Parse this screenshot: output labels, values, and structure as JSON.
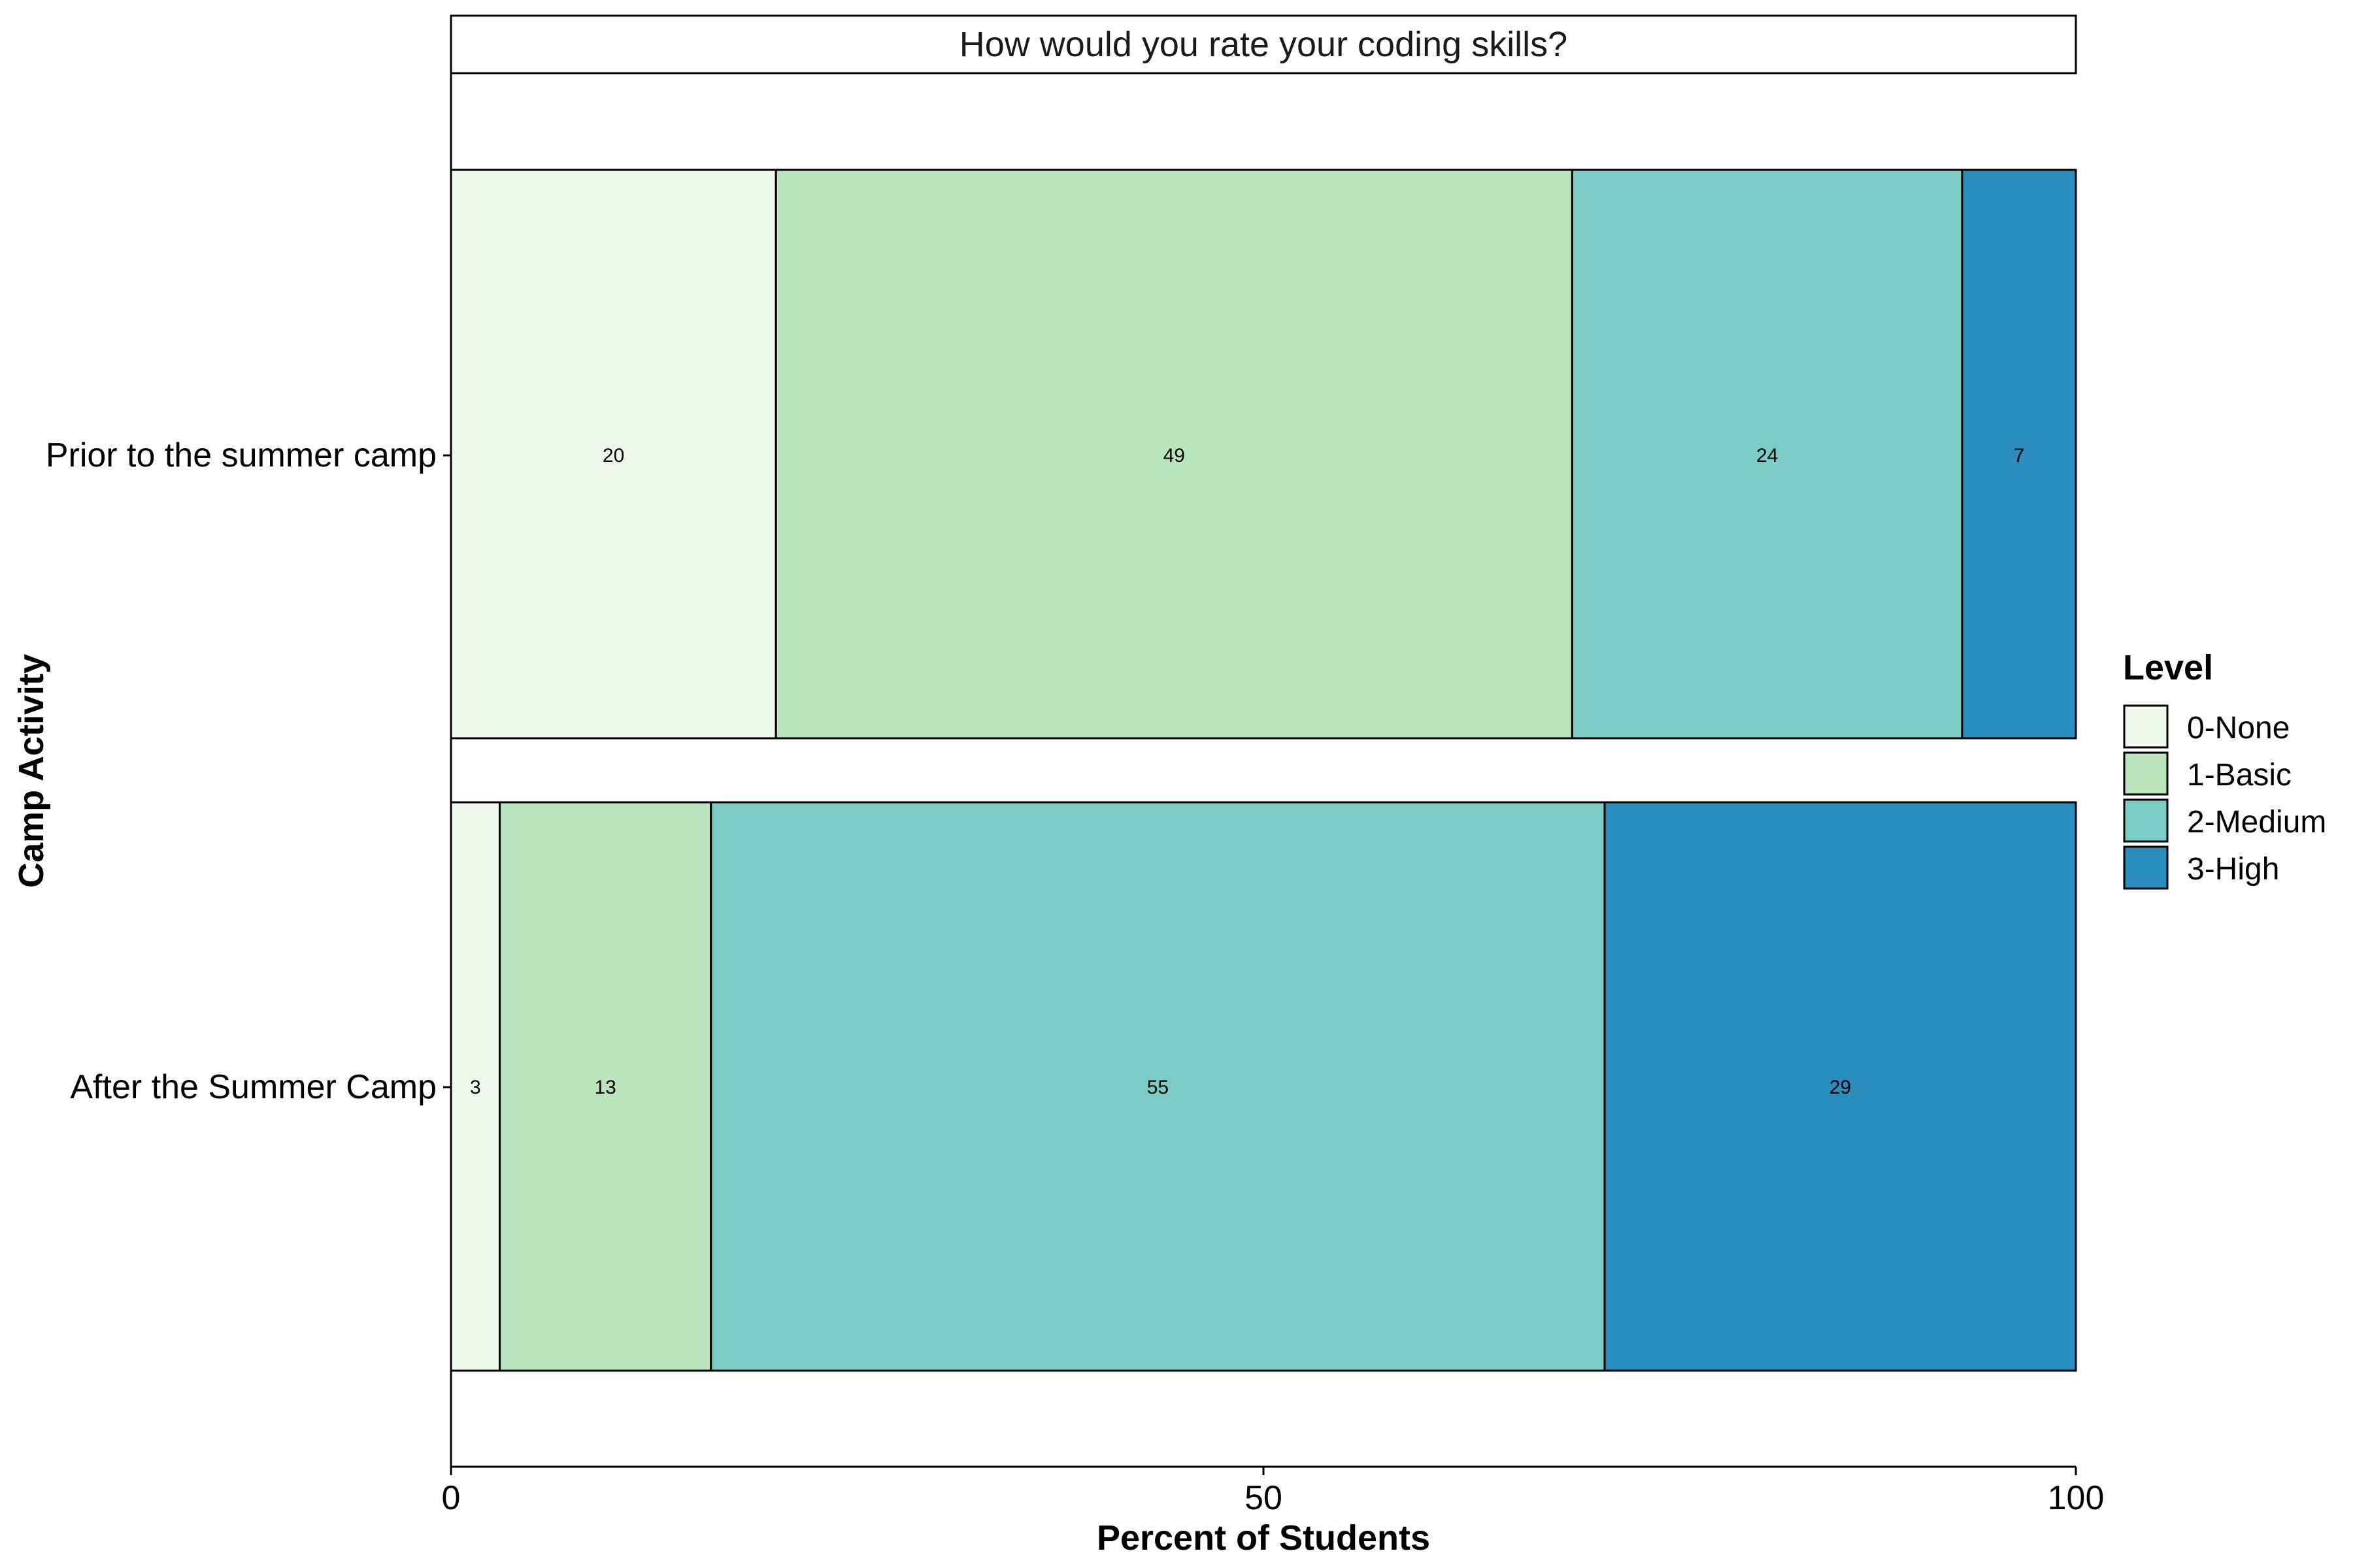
{
  "chart_data": {
    "type": "bar",
    "orientation": "horizontal",
    "stacked": true,
    "title": "How would you rate your coding skills?",
    "xlabel": "Percent of Students",
    "ylabel": "Camp Activity",
    "xlim": [
      0,
      100
    ],
    "xticks": [
      "0",
      "50",
      "100"
    ],
    "categories": [
      "Prior to the summer camp",
      "After the Summer Camp"
    ],
    "series": [
      {
        "name": "0-None",
        "color": "#edf8e9",
        "values": [
          20,
          3
        ]
      },
      {
        "name": "1-Basic",
        "color": "#bae4bc",
        "values": [
          49,
          13
        ]
      },
      {
        "name": "2-Medium",
        "color": "#7bccc4",
        "values": [
          24,
          55
        ]
      },
      {
        "name": "3-High",
        "color": "#2b8cbe",
        "values": [
          7,
          29
        ]
      }
    ],
    "legend": {
      "title": "Level",
      "position": "right"
    },
    "grid": false
  }
}
